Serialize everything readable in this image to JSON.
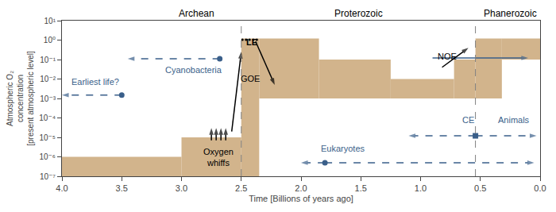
{
  "chart_data": {
    "type": "area",
    "xlabel": "Time [Billions of years ago]",
    "ylabel": "Atmospheric O₂\nconcentration\n[present atmospheric level]",
    "xlim": [
      4.0,
      0.0
    ],
    "xticks": [
      {
        "value": 4.0,
        "label": "4.0"
      },
      3.5,
      {
        "value": 3.0,
        "label": "3.0"
      },
      2.5,
      {
        "value": 2.0,
        "label": "2.0"
      },
      1.5,
      {
        "value": 1.0,
        "label": "1.0"
      },
      0.5,
      {
        "value": 0.0,
        "label": "0.0"
      }
    ],
    "ylim": [
      1e-07,
      10
    ],
    "yticks": [
      {
        "value": 1e-07,
        "label": "10⁻⁷"
      },
      {
        "value": 1e-06,
        "label": "10⁻⁶"
      },
      {
        "value": 1e-05,
        "label": "10⁻⁵"
      },
      {
        "value": 0.0001,
        "label": "10⁻⁴"
      },
      {
        "value": 0.001,
        "label": "10⁻³"
      },
      {
        "value": 0.01,
        "label": "10⁻²"
      },
      {
        "value": 0.1,
        "label": "10⁻¹"
      },
      {
        "value": 1,
        "label": "10⁰"
      },
      {
        "value": 10,
        "label": "10¹"
      }
    ],
    "log": "y",
    "grid": false,
    "color": "#d2b48c",
    "blocks": [
      {
        "x0": 4.0,
        "x1": 3.0,
        "y0": 1e-07,
        "y1": 1e-06
      },
      {
        "x0": 3.0,
        "x1": 2.5,
        "y0": 1e-07,
        "y1": 1e-05
      },
      {
        "x0": 2.5,
        "x1": 2.35,
        "y0": 1e-07,
        "y1": 1.2
      },
      {
        "x0": 2.35,
        "x1": 1.85,
        "y0": 0.001,
        "y1": 1.2
      },
      {
        "x0": 1.85,
        "x1": 1.25,
        "y0": 0.001,
        "y1": 0.1
      },
      {
        "x0": 1.25,
        "x1": 0.72,
        "y0": 0.001,
        "y1": 0.01
      },
      {
        "x0": 0.72,
        "x1": 0.541,
        "y0": 0.001,
        "y1": 0.1
      },
      {
        "x0": 0.541,
        "x1": 0.32,
        "y0": 0.001,
        "y1": 1.2
      },
      {
        "x0": 0.32,
        "x1": 0.0,
        "y0": 0.1,
        "y1": 1.2
      }
    ],
    "eon_boundaries": [
      2.5,
      0.541
    ],
    "eons": [
      {
        "text": "Archean",
        "x": 2.875
      },
      {
        "text": "Proterozoic",
        "x": 1.52
      },
      {
        "text": "Phanerozoic",
        "x": 0.25
      }
    ],
    "series": [
      {
        "type": "line",
        "x": [
          3.5,
          4.0
        ],
        "values": [
          0.0015,
          0.0015
        ],
        "color": "#3a5f8a",
        "line_style": "dashed",
        "marker": "arrow"
      },
      {
        "type": "line",
        "x": [
          2.68,
          3.45
        ],
        "values": [
          0.11,
          0.11
        ],
        "color": "#3a5f8a",
        "line_style": "dashed",
        "marker": "arrow"
      },
      {
        "type": "line",
        "x": [
          1.8,
          2.0
        ],
        "values": [
          5e-07,
          5e-07
        ],
        "color": "#3a5f8a",
        "line_style": "dashed",
        "marker": "arrow"
      },
      {
        "type": "line",
        "x": [
          1.8,
          0.05
        ],
        "values": [
          5e-07,
          5e-07
        ],
        "color": "#3a5f8a",
        "line_style": "dashed",
        "marker": "arrow"
      },
      {
        "type": "line",
        "x": [
          0.541,
          1.1
        ],
        "values": [
          1.2e-05,
          1.2e-05
        ],
        "color": "#3a5f8a",
        "line_style": "dashed",
        "marker": "arrow"
      },
      {
        "type": "line",
        "x": [
          0.541,
          0.03
        ],
        "values": [
          1.2e-05,
          1.2e-05
        ],
        "color": "#3a5f8a",
        "line_style": "dashed",
        "marker": "arrow"
      },
      {
        "type": "line",
        "x": [
          0.9,
          0.1
        ],
        "values": [
          0.12,
          0.12
        ],
        "color": "#3a5f8a",
        "line_style": "solid",
        "marker": "arrow"
      },
      {
        "type": "line",
        "x": [
          2.63,
          2.63
        ],
        "values": [
          7e-06,
          3e-05
        ],
        "color": "black",
        "line_style": "solid",
        "marker": "arrow"
      },
      {
        "type": "line",
        "x": [
          2.67,
          2.67
        ],
        "values": [
          7e-06,
          3e-05
        ],
        "color": "black",
        "line_style": "solid",
        "marker": "arrow"
      },
      {
        "type": "line",
        "x": [
          2.71,
          2.71
        ],
        "values": [
          7e-06,
          3e-05
        ],
        "color": "black",
        "line_style": "solid",
        "marker": "arrow"
      },
      {
        "type": "line",
        "x": [
          2.75,
          2.75
        ],
        "values": [
          7e-06,
          3e-05
        ],
        "color": "black",
        "line_style": "solid",
        "marker": "arrow"
      },
      {
        "type": "line",
        "x": [
          2.58,
          2.5
        ],
        "values": [
          2e-05,
          0.25
        ],
        "color": "black",
        "line_style": "solid",
        "marker": "arrow"
      },
      {
        "type": "line",
        "x": [
          2.38,
          2.22
        ],
        "values": [
          0.85,
          0.005
        ],
        "color": "black",
        "line_style": "solid",
        "marker": "arrow"
      },
      {
        "type": "line",
        "x": [
          0.82,
          0.6
        ],
        "values": [
          0.04,
          0.4
        ],
        "color": "black",
        "line_style": "solid",
        "marker": "arrow"
      },
      {
        "type": "scatter",
        "x": [
          3.5,
          2.68,
          1.8
        ],
        "values": [
          0.0015,
          0.11,
          5e-07
        ],
        "color": "#3a5f8a",
        "marker": "circle"
      },
      {
        "type": "scatter",
        "x": [
          0.541
        ],
        "values": [
          1.2e-05
        ],
        "color": "#3a5f8a",
        "marker": "square"
      },
      {
        "type": "scatter",
        "x": [
          2.37,
          2.4,
          2.43,
          2.46,
          2.49
        ],
        "values": [
          1.05,
          1.05,
          1.05,
          1.05,
          1.05
        ],
        "color": "black",
        "marker": "dot"
      }
    ],
    "annotations": [
      {
        "text": "Earliest life?",
        "x": 3.72,
        "y": 0.0035,
        "color": "#3a5f8a",
        "anchor": "bottom"
      },
      {
        "text": "Cyanobacteria",
        "x": 2.9,
        "y": 0.0605,
        "color": "#3a5f8a",
        "anchor": "top"
      },
      {
        "text": "Eukaryotes",
        "x": 1.65,
        "y": 1.25e-06,
        "color": "#3a5f8a",
        "anchor": "bottom"
      },
      {
        "text": "CE",
        "x": 0.535,
        "y": 3.6e-05,
        "color": "#3a5f8a",
        "anchor": "bottom right"
      },
      {
        "text": "Animals",
        "x": 0.22,
        "y": 3.6e-05,
        "color": "#3a5f8a",
        "anchor": "bottom"
      },
      {
        "text": "GOE",
        "x": 2.52,
        "y": 0.005,
        "color": "black",
        "anchor": "bottom left"
      },
      {
        "text": "Oxygen\nwhiffs",
        "x": 2.69,
        "y": 4e-06,
        "color": "black",
        "anchor": "top"
      },
      {
        "text": "LE",
        "x": 2.415,
        "y": 0.78,
        "color": "black",
        "anchor": "middle",
        "weight": "bold"
      },
      {
        "text": "NOE",
        "x": 0.78,
        "y": 0.15,
        "color": "black",
        "anchor": "middle"
      }
    ]
  }
}
